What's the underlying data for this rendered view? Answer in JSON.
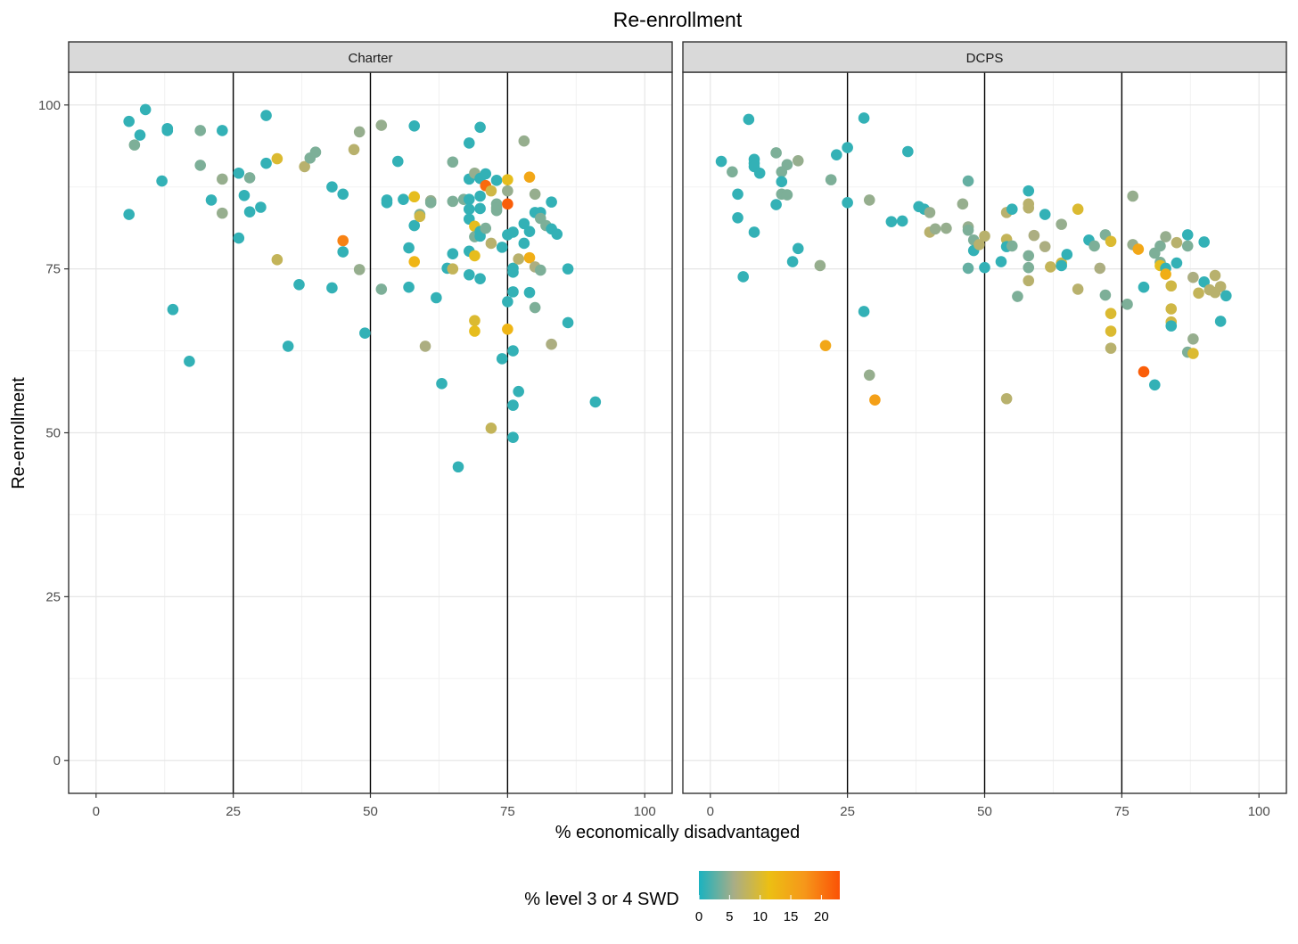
{
  "chart_data": {
    "type": "scatter",
    "title": "Re-enrollment",
    "xlabel": "% economically disadvantaged",
    "ylabel": "Re-enrollment",
    "xlim": [
      -5,
      105
    ],
    "ylim": [
      -5,
      105
    ],
    "x_ticks": [
      0,
      25,
      50,
      75,
      100
    ],
    "y_ticks": [
      0,
      25,
      50,
      75,
      100
    ],
    "vlines": [
      25,
      50,
      75
    ],
    "grid": true,
    "facets": [
      "Charter",
      "DCPS"
    ],
    "color_legend": {
      "title": "% level 3 or 4 SWD",
      "ticks": [
        0,
        5,
        10,
        15,
        20
      ],
      "range": [
        0,
        23
      ],
      "colors": [
        "#1ab2c0",
        "#a9ad86",
        "#ecbf13",
        "#f6971a",
        "#fb5206"
      ],
      "position": "bottom"
    },
    "panels": [
      {
        "name": "Charter",
        "points": [
          [
            6,
            97.5,
            1
          ],
          [
            6,
            83.3,
            1
          ],
          [
            7,
            93.9,
            4
          ],
          [
            8,
            95.4,
            1
          ],
          [
            9,
            99.3,
            1
          ],
          [
            12,
            88.4,
            1
          ],
          [
            13,
            96.4,
            1
          ],
          [
            13,
            96.1,
            1
          ],
          [
            14,
            68.8,
            1
          ],
          [
            17,
            60.9,
            1
          ],
          [
            19,
            96.1,
            4
          ],
          [
            19,
            90.8,
            4
          ],
          [
            21,
            85.5,
            1
          ],
          [
            23,
            96.1,
            1
          ],
          [
            23,
            88.7,
            5
          ],
          [
            23,
            83.5,
            5
          ],
          [
            26,
            89.6,
            1
          ],
          [
            26,
            79.7,
            1
          ],
          [
            27,
            86.2,
            1
          ],
          [
            28,
            88.9,
            4
          ],
          [
            28,
            83.7,
            1
          ],
          [
            30,
            84.4,
            1
          ],
          [
            31,
            98.4,
            1
          ],
          [
            31,
            91.1,
            1
          ],
          [
            33,
            91.8,
            10
          ],
          [
            33,
            76.4,
            8
          ],
          [
            35,
            63.2,
            1
          ],
          [
            37,
            72.6,
            1
          ],
          [
            38,
            90.6,
            7
          ],
          [
            39,
            91.9,
            4
          ],
          [
            40,
            92.8,
            4
          ],
          [
            43,
            87.5,
            1
          ],
          [
            43,
            72.1,
            1
          ],
          [
            45,
            86.4,
            1
          ],
          [
            45,
            79.3,
            19
          ],
          [
            45,
            77.6,
            1
          ],
          [
            47,
            93.2,
            7
          ],
          [
            48,
            95.9,
            5
          ],
          [
            48,
            74.9,
            5
          ],
          [
            49,
            65.2,
            1
          ],
          [
            52,
            96.9,
            5
          ],
          [
            52,
            71.9,
            4
          ],
          [
            53,
            85.5,
            1
          ],
          [
            53,
            85.1,
            1
          ],
          [
            55,
            91.4,
            1
          ],
          [
            56,
            85.6,
            1
          ],
          [
            57,
            78.2,
            1
          ],
          [
            57,
            72.2,
            1
          ],
          [
            58,
            96.8,
            1
          ],
          [
            58,
            86.0,
            11
          ],
          [
            58,
            81.6,
            1
          ],
          [
            58,
            76.1,
            13
          ],
          [
            59,
            83.3,
            4
          ],
          [
            59,
            83.0,
            9
          ],
          [
            60,
            63.2,
            6
          ],
          [
            61,
            85.4,
            5
          ],
          [
            61,
            85.1,
            4
          ],
          [
            62,
            70.6,
            1
          ],
          [
            63,
            57.5,
            1
          ],
          [
            64,
            75.1,
            1
          ],
          [
            65,
            91.3,
            4
          ],
          [
            65,
            85.3,
            4
          ],
          [
            65,
            77.3,
            1
          ],
          [
            65,
            75.0,
            8
          ],
          [
            66,
            44.8,
            1
          ],
          [
            67,
            85.6,
            4
          ],
          [
            68,
            94.2,
            1
          ],
          [
            68,
            88.7,
            1
          ],
          [
            68,
            85.6,
            1
          ],
          [
            68,
            84.1,
            1
          ],
          [
            68,
            82.6,
            1
          ],
          [
            68,
            77.7,
            1
          ],
          [
            68,
            74.1,
            1
          ],
          [
            69,
            89.6,
            5
          ],
          [
            69,
            81.5,
            11
          ],
          [
            69,
            79.9,
            4
          ],
          [
            69,
            77.0,
            11
          ],
          [
            69,
            67.1,
            10
          ],
          [
            69,
            65.5,
            11
          ],
          [
            70,
            96.6,
            1
          ],
          [
            70,
            88.8,
            1
          ],
          [
            70,
            86.1,
            1
          ],
          [
            70,
            84.2,
            1
          ],
          [
            70,
            80.7,
            1
          ],
          [
            70,
            80.0,
            1
          ],
          [
            70,
            73.5,
            1
          ],
          [
            71,
            89.5,
            1
          ],
          [
            71,
            87.7,
            21
          ],
          [
            71,
            81.2,
            4
          ],
          [
            72,
            86.9,
            9
          ],
          [
            72,
            78.9,
            7
          ],
          [
            72,
            50.7,
            8
          ],
          [
            73,
            88.5,
            1
          ],
          [
            73,
            84.9,
            4
          ],
          [
            73,
            84.3,
            4
          ],
          [
            73,
            83.9,
            4
          ],
          [
            74,
            78.3,
            1
          ],
          [
            74,
            61.3,
            1
          ],
          [
            75,
            88.6,
            11
          ],
          [
            75,
            86.9,
            5
          ],
          [
            75,
            84.9,
            22
          ],
          [
            75,
            80.2,
            1
          ],
          [
            75,
            70.0,
            1
          ],
          [
            75,
            65.8,
            13
          ],
          [
            76,
            80.6,
            1
          ],
          [
            76,
            75.1,
            1
          ],
          [
            76,
            74.5,
            1
          ],
          [
            76,
            71.5,
            1
          ],
          [
            76,
            62.5,
            1
          ],
          [
            76,
            54.2,
            1
          ],
          [
            76,
            49.3,
            1
          ],
          [
            77,
            76.5,
            7
          ],
          [
            77,
            56.3,
            1
          ],
          [
            78,
            94.5,
            5
          ],
          [
            78,
            81.9,
            1
          ],
          [
            78,
            78.9,
            1
          ],
          [
            79,
            89.0,
            15
          ],
          [
            79,
            80.7,
            1
          ],
          [
            79,
            76.7,
            14
          ],
          [
            79,
            71.4,
            1
          ],
          [
            80,
            86.4,
            5
          ],
          [
            80,
            83.6,
            1
          ],
          [
            80,
            75.3,
            6
          ],
          [
            80,
            69.1,
            4
          ],
          [
            81,
            83.6,
            1
          ],
          [
            81,
            82.7,
            4
          ],
          [
            81,
            74.8,
            4
          ],
          [
            82,
            81.6,
            4
          ],
          [
            83,
            85.2,
            1
          ],
          [
            83,
            81.1,
            1
          ],
          [
            83,
            63.5,
            6
          ],
          [
            84,
            80.3,
            1
          ],
          [
            86,
            75.0,
            1
          ],
          [
            86,
            66.8,
            1
          ],
          [
            91,
            54.7,
            1
          ]
        ]
      },
      {
        "name": "DCPS",
        "points": [
          [
            2,
            91.4,
            1
          ],
          [
            4,
            89.8,
            4
          ],
          [
            5,
            86.4,
            1
          ],
          [
            5,
            82.8,
            1
          ],
          [
            6,
            73.8,
            1
          ],
          [
            7,
            97.8,
            1
          ],
          [
            8,
            91.7,
            1
          ],
          [
            8,
            91.1,
            1
          ],
          [
            8,
            90.6,
            1
          ],
          [
            8,
            80.6,
            1
          ],
          [
            9,
            89.6,
            1
          ],
          [
            12,
            92.7,
            4
          ],
          [
            12,
            84.8,
            1
          ],
          [
            13,
            89.8,
            4
          ],
          [
            13,
            88.3,
            1
          ],
          [
            13,
            86.4,
            4
          ],
          [
            14,
            90.9,
            4
          ],
          [
            14,
            86.3,
            4
          ],
          [
            15,
            76.1,
            1
          ],
          [
            16,
            91.5,
            5
          ],
          [
            16,
            78.1,
            1
          ],
          [
            20,
            75.5,
            5
          ],
          [
            21,
            63.3,
            15
          ],
          [
            22,
            88.6,
            4
          ],
          [
            23,
            92.4,
            1
          ],
          [
            25,
            93.5,
            1
          ],
          [
            25,
            85.1,
            1
          ],
          [
            28,
            98.0,
            1
          ],
          [
            28,
            68.5,
            1
          ],
          [
            29,
            85.5,
            5
          ],
          [
            29,
            58.8,
            5
          ],
          [
            30,
            55.0,
            16
          ],
          [
            33,
            82.2,
            1
          ],
          [
            35,
            82.3,
            1
          ],
          [
            36,
            92.9,
            1
          ],
          [
            38,
            84.5,
            1
          ],
          [
            39,
            84.1,
            1
          ],
          [
            40,
            83.6,
            5
          ],
          [
            40,
            80.6,
            7
          ],
          [
            41,
            81.1,
            5
          ],
          [
            43,
            81.2,
            5
          ],
          [
            46,
            84.9,
            5
          ],
          [
            47,
            88.4,
            3
          ],
          [
            47,
            81.4,
            5
          ],
          [
            47,
            80.9,
            4
          ],
          [
            47,
            75.1,
            3
          ],
          [
            48,
            79.4,
            4
          ],
          [
            48,
            77.8,
            1
          ],
          [
            49,
            78.7,
            7
          ],
          [
            50,
            80.0,
            7
          ],
          [
            50,
            75.2,
            1
          ],
          [
            53,
            76.1,
            1
          ],
          [
            54,
            83.6,
            7
          ],
          [
            54,
            79.5,
            8
          ],
          [
            54,
            78.4,
            1
          ],
          [
            54,
            55.2,
            7
          ],
          [
            55,
            84.1,
            1
          ],
          [
            55,
            78.5,
            4
          ],
          [
            56,
            70.8,
            4
          ],
          [
            58,
            86.9,
            1
          ],
          [
            58,
            84.9,
            7
          ],
          [
            58,
            84.3,
            7
          ],
          [
            58,
            77.0,
            4
          ],
          [
            58,
            75.2,
            4
          ],
          [
            58,
            73.2,
            7
          ],
          [
            59,
            80.1,
            6
          ],
          [
            61,
            83.3,
            1
          ],
          [
            61,
            78.4,
            6
          ],
          [
            62,
            75.3,
            8
          ],
          [
            64,
            81.8,
            5
          ],
          [
            64,
            75.9,
            9
          ],
          [
            64,
            75.5,
            1
          ],
          [
            65,
            77.2,
            1
          ],
          [
            67,
            84.1,
            10
          ],
          [
            67,
            71.9,
            7
          ],
          [
            69,
            79.4,
            1
          ],
          [
            70,
            78.5,
            4
          ],
          [
            71,
            75.1,
            6
          ],
          [
            72,
            80.2,
            4
          ],
          [
            72,
            71.0,
            4
          ],
          [
            73,
            79.2,
            10
          ],
          [
            73,
            68.2,
            10
          ],
          [
            73,
            65.5,
            10
          ],
          [
            73,
            62.9,
            7
          ],
          [
            76,
            69.6,
            4
          ],
          [
            77,
            86.1,
            5
          ],
          [
            77,
            78.7,
            5
          ],
          [
            78,
            78.0,
            15
          ],
          [
            79,
            72.2,
            1
          ],
          [
            79,
            59.3,
            22
          ],
          [
            81,
            77.4,
            4
          ],
          [
            81,
            57.3,
            1
          ],
          [
            82,
            78.5,
            4
          ],
          [
            82,
            76.0,
            4
          ],
          [
            82,
            75.5,
            11
          ],
          [
            83,
            79.9,
            5
          ],
          [
            83,
            75.1,
            1
          ],
          [
            83,
            74.2,
            14
          ],
          [
            84,
            72.4,
            9
          ],
          [
            84,
            68.9,
            9
          ],
          [
            84,
            66.9,
            9
          ],
          [
            84,
            66.3,
            1
          ],
          [
            85,
            79.0,
            7
          ],
          [
            85,
            75.9,
            1
          ],
          [
            87,
            80.2,
            1
          ],
          [
            87,
            78.5,
            4
          ],
          [
            87,
            62.3,
            4
          ],
          [
            88,
            73.7,
            6
          ],
          [
            88,
            64.3,
            5
          ],
          [
            88,
            62.1,
            10
          ],
          [
            89,
            71.3,
            8
          ],
          [
            90,
            79.1,
            1
          ],
          [
            90,
            73.0,
            1
          ],
          [
            91,
            71.8,
            7
          ],
          [
            92,
            74.0,
            7
          ],
          [
            92,
            71.4,
            7
          ],
          [
            93,
            72.3,
            7
          ],
          [
            93,
            67.0,
            1
          ],
          [
            94,
            70.9,
            1
          ]
        ]
      }
    ]
  }
}
